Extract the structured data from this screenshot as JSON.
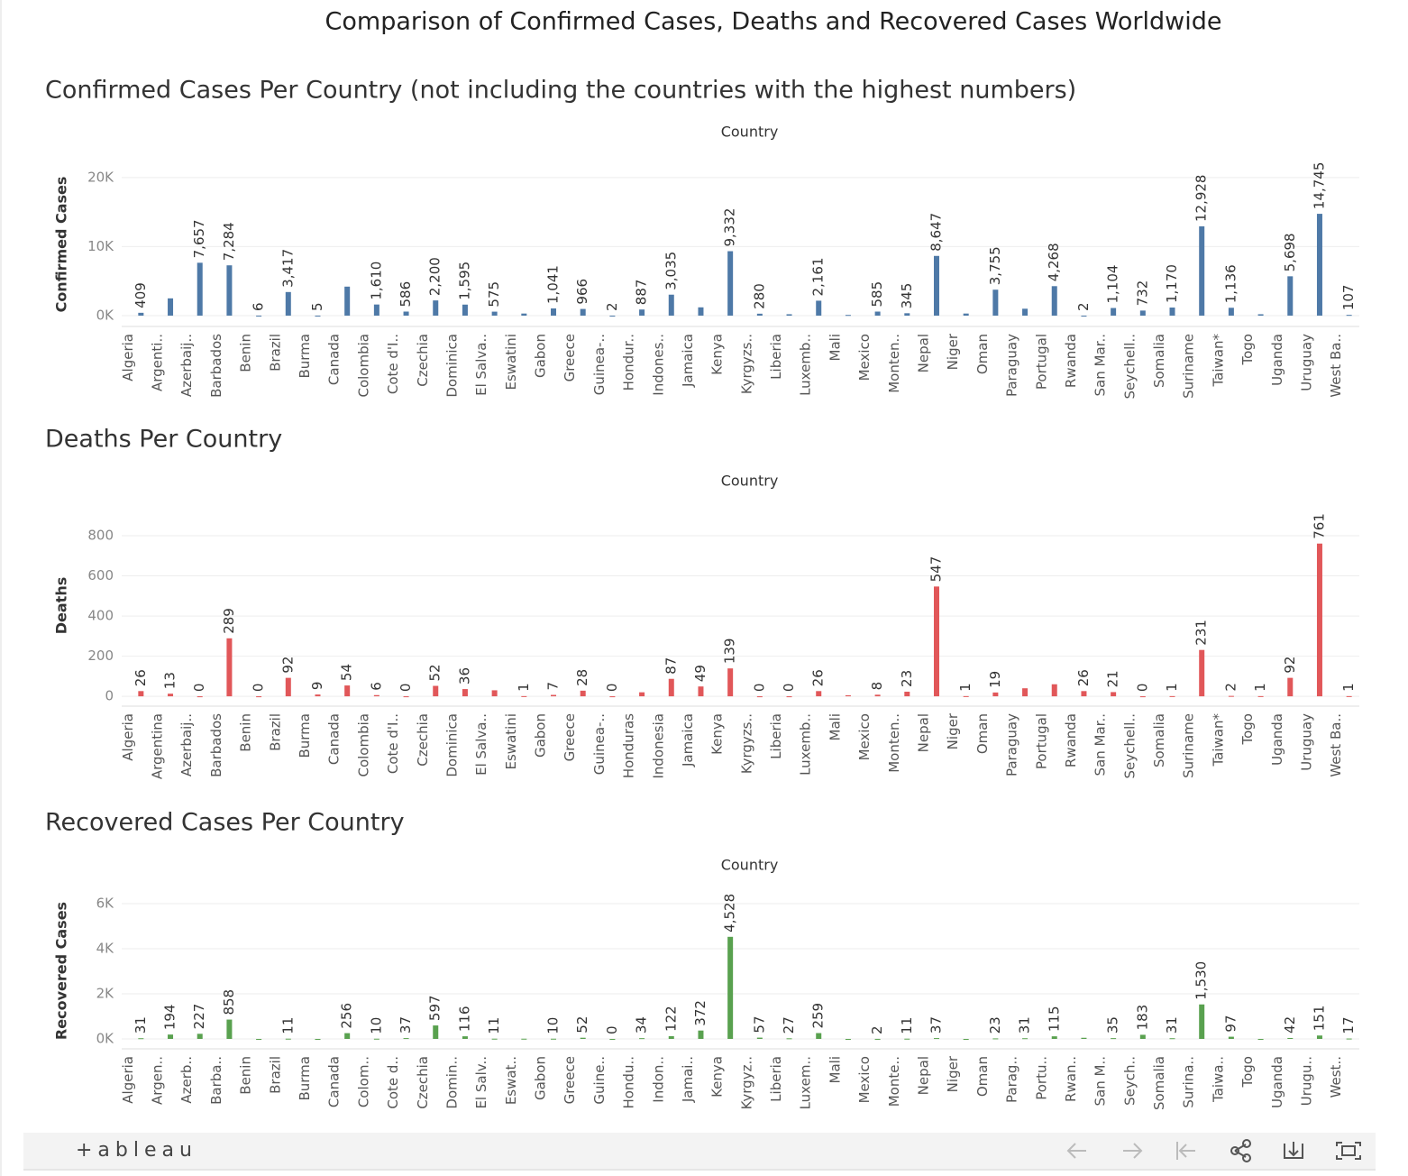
{
  "title": "Comparison of Confirmed Cases, Deaths and Recovered Cases Worldwide",
  "brand": "+ableau",
  "chart_data": [
    {
      "type": "bar",
      "title": "Confirmed Cases Per Country (not including the countries with the highest numbers)",
      "x_label": "Country",
      "y_label": "Confirmed Cases",
      "color": "#4e79a7",
      "categories": [
        "Algeria",
        "Argenti..",
        "Azerbaij..",
        "Barbados",
        "Benin",
        "Brazil",
        "Burma",
        "Canada",
        "Colombia",
        "Cote d'I..",
        "Czechia",
        "Dominica",
        "El Salva..",
        "Eswatini",
        "Gabon",
        "Greece",
        "Guinea-..",
        "Hondur..",
        "Indones..",
        "Jamaica",
        "Kenya",
        "Kyrgyzs..",
        "Liberia",
        "Luxemb..",
        "Mali",
        "Mexico",
        "Monten..",
        "Nepal",
        "Niger",
        "Oman",
        "Paraguay",
        "Portugal",
        "Rwanda",
        "San Mar..",
        "Seychell..",
        "Somalia",
        "Suriname",
        "Taiwan*",
        "Togo",
        "Uganda",
        "Uruguay",
        "West Ba.."
      ],
      "values": [
        409,
        2500,
        7657,
        7284,
        6,
        3417,
        5,
        4200,
        1610,
        586,
        2200,
        1595,
        575,
        300,
        1041,
        966,
        2,
        887,
        3035,
        1200,
        9332,
        280,
        200,
        2161,
        100,
        585,
        345,
        8647,
        300,
        3755,
        1000,
        4268,
        2,
        1104,
        732,
        1170,
        12928,
        1136,
        200,
        5698,
        14745,
        107
      ],
      "value_labels": [
        "409",
        null,
        "7,657",
        "7,284",
        "6",
        "3,417",
        "5",
        null,
        "1,610",
        "586",
        "2,200",
        "1,595",
        "575",
        null,
        "1,041",
        "966",
        "2",
        "887",
        "3,035",
        null,
        "9,332",
        "280",
        null,
        "2,161",
        null,
        "585",
        "345",
        "8,647",
        null,
        "3,755",
        null,
        "4,268",
        "2",
        "1,104",
        "732",
        "1,170",
        "12,928",
        "1,136",
        null,
        "5,698",
        "14,745",
        "107"
      ],
      "ylim": [
        -1570,
        22200
      ],
      "yticks": [
        {
          "value": 0,
          "label": "0K"
        },
        {
          "value": 10000,
          "label": "10K"
        },
        {
          "value": 20000,
          "label": "20K"
        }
      ],
      "grid": true
    },
    {
      "type": "bar",
      "title": "Deaths Per Country",
      "x_label": "Country",
      "y_label": "Deaths",
      "color": "#e15759",
      "categories": [
        "Algeria",
        "Argentina",
        "Azerbaij..",
        "Barbados",
        "Benin",
        "Brazil",
        "Burma",
        "Canada",
        "Colombia",
        "Cote d'I..",
        "Czechia",
        "Dominica",
        "El Salva..",
        "Eswatini",
        "Gabon",
        "Greece",
        "Guinea-..",
        "Honduras",
        "Indonesia",
        "Jamaica",
        "Kenya",
        "Kyrgyzs..",
        "Liberia",
        "Luxemb..",
        "Mali",
        "Mexico",
        "Monten..",
        "Nepal",
        "Niger",
        "Oman",
        "Paraguay",
        "Portugal",
        "Rwanda",
        "San Mar..",
        "Seychell..",
        "Somalia",
        "Suriname",
        "Taiwan*",
        "Togo",
        "Uganda",
        "Uruguay",
        "West Ba.."
      ],
      "values": [
        26,
        13,
        0,
        289,
        0,
        92,
        9,
        54,
        6,
        0,
        52,
        36,
        30,
        1,
        7,
        28,
        0,
        20,
        87,
        49,
        139,
        0,
        0,
        26,
        5,
        8,
        23,
        547,
        1,
        19,
        40,
        60,
        26,
        21,
        0,
        1,
        231,
        2,
        1,
        92,
        761,
        1
      ],
      "value_labels": [
        "26",
        "13",
        "0",
        "289",
        "0",
        "92",
        "9",
        "54",
        "6",
        "0",
        "52",
        "36",
        null,
        "1",
        "7",
        "28",
        "0",
        null,
        "87",
        "49",
        "139",
        "0",
        "0",
        "26",
        null,
        "8",
        "23",
        "547",
        "1",
        "19",
        null,
        null,
        "26",
        "21",
        "0",
        "1",
        "231",
        "2",
        "1",
        "92",
        "761",
        "1"
      ],
      "ylim": [
        -49,
        953
      ],
      "yticks": [
        0,
        200,
        400,
        600,
        800
      ],
      "grid": true
    },
    {
      "type": "bar",
      "title": "Recovered Cases Per Country",
      "x_label": "Country",
      "y_label": "Recovered Cases",
      "color": "#59a14f",
      "categories": [
        "Algeria",
        "Argen..",
        "Azerb..",
        "Barba..",
        "Benin",
        "Brazil",
        "Burma",
        "Canada",
        "Colom..",
        "Cote d..",
        "Czechia",
        "Domin..",
        "El Salv..",
        "Eswat..",
        "Gabon",
        "Greece",
        "Guine..",
        "Hondu..",
        "Indon..",
        "Jamai..",
        "Kenya",
        "Kyrgyz..",
        "Liberia",
        "Luxem..",
        "Mali",
        "Mexico",
        "Monte..",
        "Nepal",
        "Niger",
        "Oman",
        "Parag..",
        "Portu..",
        "Rwan..",
        "San M..",
        "Seych..",
        "Somalia",
        "Surina..",
        "Taiwa..",
        "Togo",
        "Uganda",
        "Urugu..",
        "West.."
      ],
      "values": [
        31,
        194,
        227,
        858,
        0,
        11,
        0,
        256,
        10,
        37,
        597,
        116,
        11,
        10,
        10,
        52,
        0,
        34,
        122,
        372,
        4528,
        57,
        27,
        259,
        0,
        2,
        11,
        37,
        0,
        23,
        31,
        115,
        50,
        35,
        183,
        31,
        1530,
        97,
        0,
        42,
        151,
        17
      ],
      "value_labels": [
        "31",
        "194",
        "227",
        "858",
        null,
        "11",
        null,
        "256",
        "10",
        "37",
        "597",
        "116",
        "11",
        null,
        "10",
        "52",
        "0",
        "34",
        "122",
        "372",
        "4,528",
        "57",
        "27",
        "259",
        null,
        "2",
        "11",
        "37",
        null,
        "23",
        "31",
        "115",
        null,
        "35",
        "183",
        "31",
        "1,530",
        "97",
        null,
        "42",
        "151",
        "17"
      ],
      "ylim": [
        -440,
        6480
      ],
      "yticks": [
        {
          "value": 0,
          "label": "0K"
        },
        {
          "value": 2000,
          "label": "2K"
        },
        {
          "value": 4000,
          "label": "4K"
        },
        {
          "value": 6000,
          "label": "6K"
        }
      ],
      "grid": true
    }
  ]
}
